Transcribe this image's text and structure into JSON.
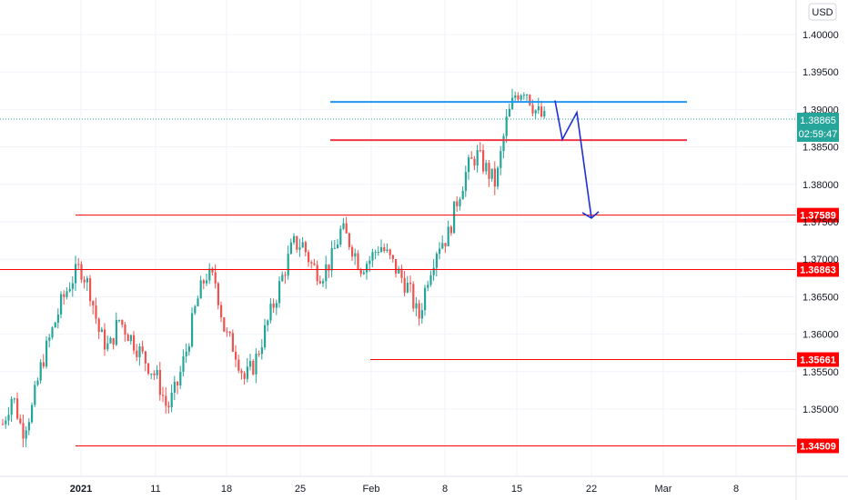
{
  "chart_data": {
    "type": "candlestick",
    "currency_label": "USD",
    "y_ticks": [
      "1.40000",
      "1.39500",
      "1.39000",
      "1.38500",
      "1.38000",
      "1.37500",
      "1.37000",
      "1.36500",
      "1.36000",
      "1.35500",
      "1.35000"
    ],
    "x_ticks": [
      {
        "label": "2021",
        "bold": true
      },
      {
        "label": "11",
        "bold": false
      },
      {
        "label": "18",
        "bold": false
      },
      {
        "label": "25",
        "bold": false
      },
      {
        "label": "Feb",
        "bold": false
      },
      {
        "label": "8",
        "bold": false
      },
      {
        "label": "15",
        "bold": false
      },
      {
        "label": "22",
        "bold": false
      },
      {
        "label": "Mar",
        "bold": false
      },
      {
        "label": "8",
        "bold": false
      }
    ],
    "current_price": {
      "price": "1.38865",
      "countdown": "02:59:47",
      "color": "#26a69a"
    },
    "levels": [
      {
        "price": "1.37589",
        "color": "#ff0000",
        "badge": true
      },
      {
        "price": "1.36863",
        "color": "#ff0000",
        "badge": true
      },
      {
        "price": "1.35661",
        "color": "#ff0000",
        "badge": true
      },
      {
        "price": "1.34509",
        "color": "#ff0000",
        "badge": true
      },
      {
        "price": "1.3859",
        "color": "#f23645",
        "badge": false
      },
      {
        "price": "1.3910",
        "color": "#2196f3",
        "badge": false
      }
    ],
    "projection_path": {
      "color": "#1e2fd6",
      "points": [
        [
          "Feb 17",
          1.3912
        ],
        [
          "Feb 18",
          1.386
        ],
        [
          "Feb 19",
          1.3896
        ],
        [
          "Feb 22",
          1.3755
        ]
      ]
    },
    "colors": {
      "up": "#26a69a",
      "down": "#ef5350",
      "grid": "#f0f3fa"
    },
    "price_path": [
      1.348,
      1.352,
      1.347,
      1.35,
      1.356,
      1.36,
      1.364,
      1.367,
      1.369,
      1.366,
      1.36,
      1.358,
      1.362,
      1.36,
      1.358,
      1.356,
      1.354,
      1.35,
      1.353,
      1.358,
      1.364,
      1.368,
      1.367,
      1.36,
      1.358,
      1.354,
      1.356,
      1.36,
      1.364,
      1.368,
      1.372,
      1.372,
      1.369,
      1.368,
      1.37,
      1.374,
      1.372,
      1.369,
      1.37,
      1.372,
      1.37,
      1.368,
      1.366,
      1.362,
      1.368,
      1.372,
      1.373,
      1.378,
      1.382,
      1.384,
      1.382,
      1.38,
      1.388,
      1.392,
      1.393,
      1.39,
      1.38865
    ]
  }
}
